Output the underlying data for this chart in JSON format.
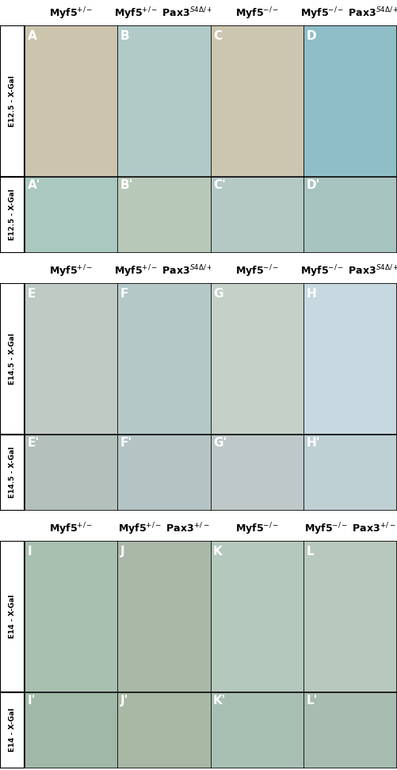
{
  "col_headers_g1": [
    "Myf5$^{+/-}$",
    "Myf5$^{+/-}$ Pax3$^{S4\\Delta/+}$",
    "Myf5$^{-/-}$",
    "Myf5$^{-/-}$ Pax3$^{S4\\Delta/+}$"
  ],
  "col_headers_g2": [
    "Myf5$^{+/-}$",
    "Myf5$^{+/-}$ Pax3$^{S4\\Delta/+}$",
    "Myf5$^{-/-}$",
    "Myf5$^{-/-}$ Pax3$^{S4\\Delta/+}$"
  ],
  "col_headers_g3": [
    "Myf5$^{+/-}$",
    "Myf5$^{+/-}$ Pax3$^{+/-}$",
    "Myf5$^{-/-}$",
    "Myf5$^{-/-}$ Pax3$^{+/-}$"
  ],
  "row_labels": [
    "E12.5 - X-Gal",
    "E12.5 - X-Gal",
    "E14.5 - X-Gal",
    "E14.5 - X-Gal",
    "E14 - X-Gal",
    "E14 - X-Gal"
  ],
  "panel_labels": [
    [
      "A",
      "B",
      "C",
      "D"
    ],
    [
      "A'",
      "B'",
      "C'",
      "D'"
    ],
    [
      "E",
      "F",
      "G",
      "H"
    ],
    [
      "E'",
      "F'",
      "G'",
      "H'"
    ],
    [
      "I",
      "J",
      "K",
      "L"
    ],
    [
      "I'",
      "J'",
      "K'",
      "L'"
    ]
  ],
  "bg_color": "#ffffff",
  "panel_border_color": "#000000",
  "row_label_fontsize": 6.5,
  "col_header_fontsize": 9,
  "panel_label_fontsize": 11,
  "fig_width": 5.02,
  "fig_height": 9.71,
  "dpi": 100,
  "avg_colors": [
    [
      "#cdc4ae",
      "#b0cac8",
      "#ccc5af",
      "#8fbec8"
    ],
    [
      "#aac8bf",
      "#b8c8b8",
      "#b4c8c4",
      "#a8c4c0"
    ],
    [
      "#c0cac4",
      "#b4c8c8",
      "#c4d0c8",
      "#c8d8e0"
    ],
    [
      "#b4c0bc",
      "#b4c4c4",
      "#bec8c8",
      "#bed0d4"
    ],
    [
      "#a8c0b0",
      "#aab8a8",
      "#b4c8bc",
      "#b8c8bc"
    ],
    [
      "#a0b8a8",
      "#a8b8a4",
      "#a8c0b4",
      "#a8bcb0"
    ]
  ],
  "tall_row_ratio": 2.0,
  "short_row_ratio": 1.0
}
